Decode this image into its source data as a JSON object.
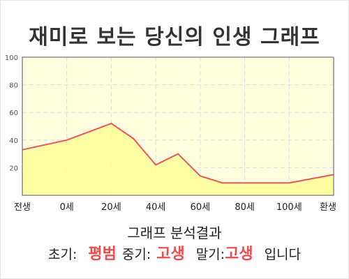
{
  "title": "재미로 보는 당신의 인생 그래프",
  "colors": {
    "plot_background": "#ffffe0",
    "area_fill": "#ffff99",
    "line": "#ee5555",
    "grid": "#dddddd",
    "highlight_text": "#ee4b4b"
  },
  "chart_data": {
    "type": "area",
    "categories": [
      "전생",
      "0세",
      "20세",
      "40세",
      "60세",
      "80세",
      "100세",
      "환생"
    ],
    "x": [
      -20,
      0,
      10,
      20,
      30,
      40,
      50,
      60,
      70,
      80,
      90,
      100,
      120
    ],
    "values": [
      33,
      40,
      46,
      52,
      41,
      22,
      30,
      14,
      9,
      9,
      9,
      9,
      15
    ],
    "ylim": [
      0,
      100
    ],
    "yticks": [
      20,
      40,
      60,
      80,
      100
    ],
    "xlim": [
      -20,
      120
    ],
    "xticks": [
      -20,
      0,
      20,
      40,
      60,
      80,
      100,
      120
    ],
    "grid": true,
    "xlabel": "",
    "ylabel": ""
  },
  "result": {
    "heading": "그래프 분석결과",
    "early_label": "초기:",
    "early_value": "평범",
    "middle_label": "중기:",
    "middle_value": "고생",
    "late_label": "말기:",
    "late_value": "고생",
    "suffix": "입니다"
  }
}
